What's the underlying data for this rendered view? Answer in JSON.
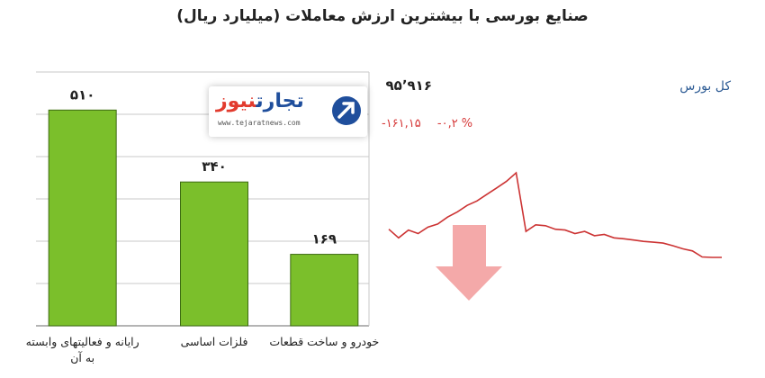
{
  "title": "صنایع بورسی با بیشترین ارزش معاملات  (میلیارد ریال)",
  "logo": {
    "name_part1": "تجارت",
    "name_part2": "نیوز",
    "url": "www.tejaratnews.com"
  },
  "index": {
    "name": "کل بورس",
    "value": "۹۵٬۹۱۶",
    "change_abs": "-۱۶۱,۱۵",
    "change_pct": "-۰,۲ %"
  },
  "colors": {
    "bar_fill": "#7bbf2b",
    "bar_stroke": "#3d6b12",
    "index_line": "#cc3333",
    "index_name": "#2e5c95",
    "down_arrow": "#f4a9a9"
  },
  "chart_data": [
    {
      "type": "bar",
      "title": "صنایع بورسی با بیشترین ارزش معاملات  (میلیارد ریال)",
      "categories": [
        [
          "رایانه و فعالیتهای وابسته",
          "به آن"
        ],
        [
          "فلزات اساسی"
        ],
        [
          "خودرو و ساخت قطعات"
        ]
      ],
      "values": [
        510,
        340,
        169
      ],
      "value_labels": [
        "۵۱۰",
        "۳۴۰",
        "۱۶۹"
      ],
      "ylim": [
        0,
        600
      ],
      "grid": true
    },
    {
      "type": "line",
      "name": "کل بورس",
      "values": [
        95950,
        95930,
        95948,
        95940,
        95955,
        95962,
        95978,
        95990,
        96005,
        96015,
        96030,
        96045,
        96060,
        96080,
        95945,
        95960,
        95958,
        95950,
        95948,
        95940,
        95945,
        95935,
        95938,
        95930,
        95928,
        95925,
        95922,
        95920,
        95918,
        95912,
        95905,
        95900,
        95886,
        95885,
        95885
      ]
    }
  ]
}
